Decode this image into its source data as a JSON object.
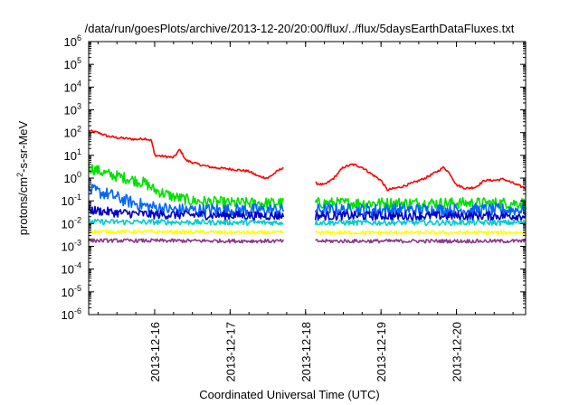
{
  "chart_data": {
    "type": "line",
    "title": "/data/run/goesPlots/archive/2013-12-20/20:00/flux/../flux/5daysEarthDataFluxes.txt",
    "xlabel": "Coordinated Universal Time (UTC)",
    "ylabel": "protons/cm²-s-sr-MeV",
    "ylabel_parts": {
      "pre": "protons/cm",
      "sup": "2",
      "post": "-s-sr-MeV"
    },
    "yscale": "log",
    "ylim": [
      1e-06,
      1000000.0
    ],
    "ytick_exponents": [
      -6,
      -5,
      -4,
      -3,
      -2,
      -1,
      0,
      1,
      2,
      3,
      4,
      5,
      6
    ],
    "ytick_base": "10",
    "xlim": [
      "2013-12-15T03:00",
      "2013-12-20T22:00"
    ],
    "xticks": [
      "2013-12-16",
      "2013-12-17",
      "2013-12-18",
      "2013-12-19",
      "2013-12-20"
    ],
    "grid": false,
    "data_gap": [
      "2013-12-17T17:00",
      "2013-12-18T03:00"
    ],
    "series": [
      {
        "color": "#ff0000",
        "noise": 0.05,
        "points": [
          [
            "2013-12-15T03:00",
            120
          ],
          [
            "2013-12-15T06:00",
            100
          ],
          [
            "2013-12-15T09:00",
            70
          ],
          [
            "2013-12-15T12:00",
            60
          ],
          [
            "2013-12-15T15:00",
            55
          ],
          [
            "2013-12-15T18:00",
            50
          ],
          [
            "2013-12-15T21:00",
            55
          ],
          [
            "2013-12-15T23:00",
            45
          ],
          [
            "2013-12-16T00:00",
            10
          ],
          [
            "2013-12-16T03:00",
            9
          ],
          [
            "2013-12-16T06:00",
            8
          ],
          [
            "2013-12-16T08:00",
            18
          ],
          [
            "2013-12-16T10:00",
            6
          ],
          [
            "2013-12-16T14:00",
            4
          ],
          [
            "2013-12-16T18:00",
            3
          ],
          [
            "2013-12-17T00:00",
            2.5
          ],
          [
            "2013-12-17T06:00",
            2
          ],
          [
            "2013-12-17T09:00",
            1.2
          ],
          [
            "2013-12-17T12:00",
            1
          ],
          [
            "2013-12-17T15:00",
            2
          ],
          [
            "2013-12-17T17:00",
            3
          ],
          [
            "2013-12-18T03:00",
            0.6
          ],
          [
            "2013-12-18T06:00",
            0.5
          ],
          [
            "2013-12-18T09:00",
            1
          ],
          [
            "2013-12-18T12:00",
            3
          ],
          [
            "2013-12-18T15:00",
            4
          ],
          [
            "2013-12-18T18:00",
            3
          ],
          [
            "2013-12-18T21:00",
            1.5
          ],
          [
            "2013-12-19T00:00",
            0.8
          ],
          [
            "2013-12-19T02:00",
            0.3
          ],
          [
            "2013-12-19T06:00",
            0.4
          ],
          [
            "2013-12-19T10:00",
            0.6
          ],
          [
            "2013-12-19T14:00",
            1
          ],
          [
            "2013-12-19T18:00",
            2
          ],
          [
            "2013-12-19T20:00",
            3
          ],
          [
            "2013-12-19T22:00",
            1.5
          ],
          [
            "2013-12-20T00:00",
            0.5
          ],
          [
            "2013-12-20T03:00",
            0.35
          ],
          [
            "2013-12-20T06:00",
            0.4
          ],
          [
            "2013-12-20T09:00",
            0.8
          ],
          [
            "2013-12-20T12:00",
            0.8
          ],
          [
            "2013-12-20T15:00",
            0.9
          ],
          [
            "2013-12-20T18:00",
            0.6
          ],
          [
            "2013-12-20T22:00",
            0.35
          ]
        ]
      },
      {
        "color": "#00e000",
        "noise": 0.25,
        "points": [
          [
            "2013-12-15T03:00",
            3
          ],
          [
            "2013-12-15T09:00",
            1.5
          ],
          [
            "2013-12-15T15:00",
            1
          ],
          [
            "2013-12-15T21:00",
            0.6
          ],
          [
            "2013-12-16T00:00",
            0.3
          ],
          [
            "2013-12-16T06:00",
            0.15
          ],
          [
            "2013-12-16T12:00",
            0.1
          ],
          [
            "2013-12-17T00:00",
            0.08
          ],
          [
            "2013-12-17T17:00",
            0.08
          ],
          [
            "2013-12-18T03:00",
            0.08
          ],
          [
            "2013-12-20T22:00",
            0.08
          ]
        ]
      },
      {
        "color": "#0066ff",
        "noise": 0.28,
        "points": [
          [
            "2013-12-15T03:00",
            0.3
          ],
          [
            "2013-12-15T09:00",
            0.2
          ],
          [
            "2013-12-15T15:00",
            0.1
          ],
          [
            "2013-12-15T21:00",
            0.06
          ],
          [
            "2013-12-16T06:00",
            0.04
          ],
          [
            "2013-12-17T17:00",
            0.04
          ],
          [
            "2013-12-18T03:00",
            0.04
          ],
          [
            "2013-12-20T22:00",
            0.04
          ]
        ]
      },
      {
        "color": "#0000cc",
        "noise": 0.2,
        "points": [
          [
            "2013-12-15T03:00",
            0.04
          ],
          [
            "2013-12-15T12:00",
            0.03
          ],
          [
            "2013-12-16T00:00",
            0.025
          ],
          [
            "2013-12-17T17:00",
            0.022
          ],
          [
            "2013-12-18T03:00",
            0.022
          ],
          [
            "2013-12-20T22:00",
            0.022
          ]
        ]
      },
      {
        "color": "#00cccc",
        "noise": 0.12,
        "points": [
          [
            "2013-12-15T03:00",
            0.012
          ],
          [
            "2013-12-17T17:00",
            0.011
          ],
          [
            "2013-12-18T03:00",
            0.011
          ],
          [
            "2013-12-20T22:00",
            0.011
          ]
        ]
      },
      {
        "color": "#ffff00",
        "noise": 0.08,
        "points": [
          [
            "2013-12-15T03:00",
            0.0045
          ],
          [
            "2013-12-17T17:00",
            0.004
          ],
          [
            "2013-12-18T03:00",
            0.004
          ],
          [
            "2013-12-20T22:00",
            0.004
          ]
        ]
      },
      {
        "color": "#8b3a8b",
        "noise": 0.08,
        "points": [
          [
            "2013-12-15T03:00",
            0.0018
          ],
          [
            "2013-12-17T17:00",
            0.0017
          ],
          [
            "2013-12-18T03:00",
            0.0017
          ],
          [
            "2013-12-20T22:00",
            0.0017
          ]
        ]
      }
    ]
  }
}
